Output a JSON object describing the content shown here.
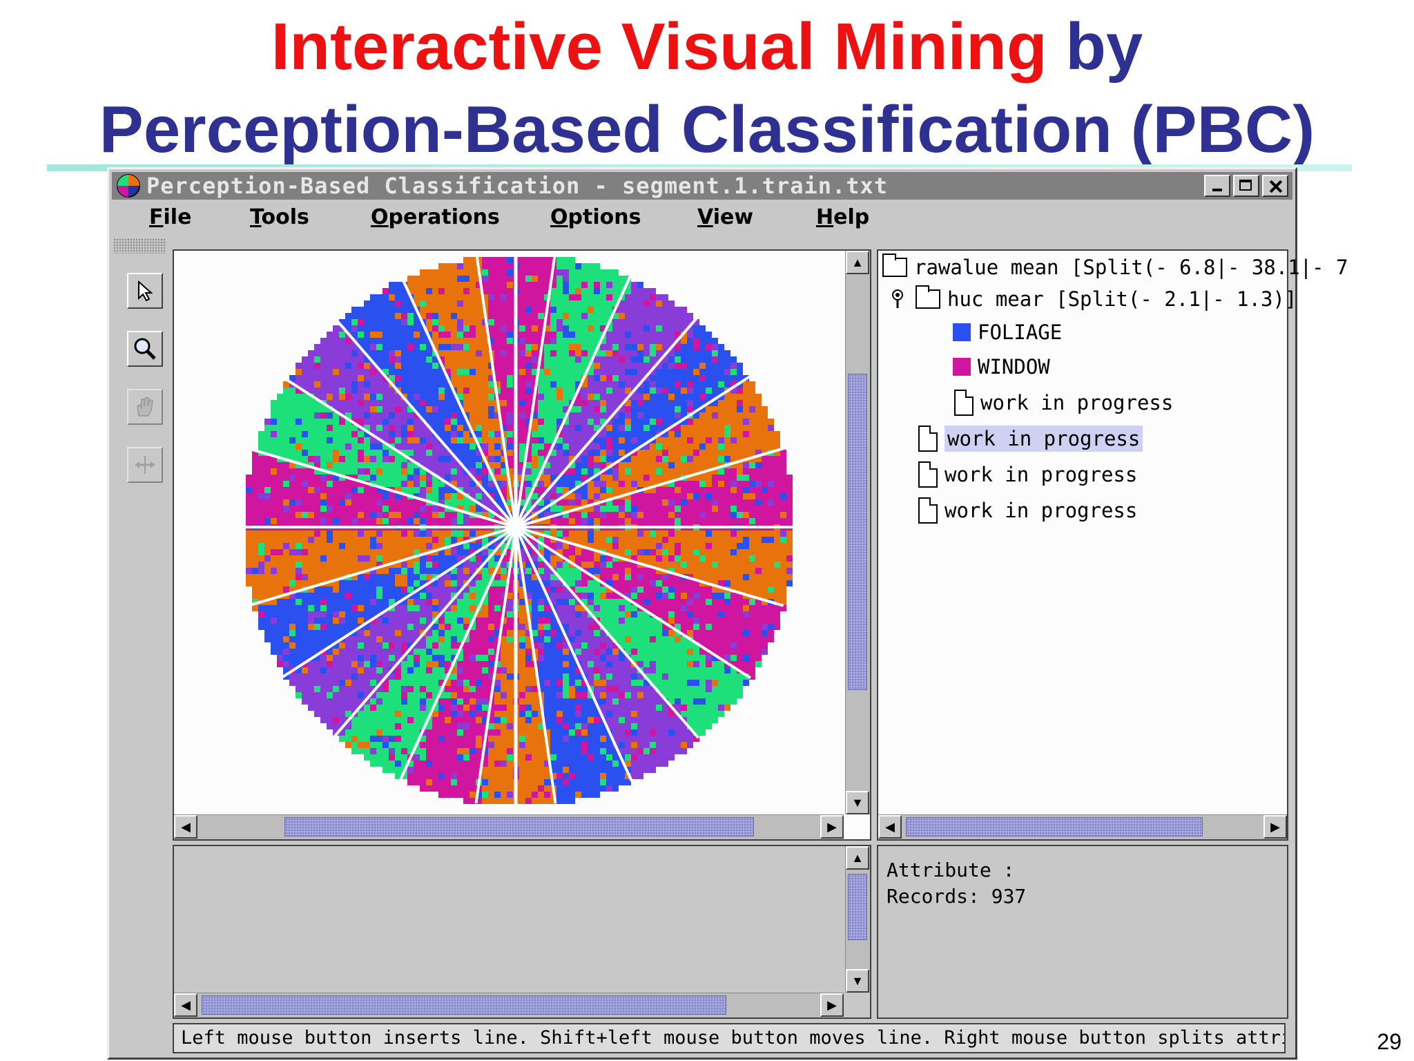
{
  "slide": {
    "title_part1": "Interactive Visual Mining",
    "title_part2": "by",
    "title_line2": "Perception-Based Classification (PBC)",
    "page_number": "29"
  },
  "window": {
    "title": "Perception-Based Classification - segment.1.train.txt",
    "menus": [
      "File",
      "Tools",
      "Operations",
      "Options",
      "View",
      "Help"
    ],
    "tools": [
      "pointer-icon",
      "zoom-icon",
      "hand-icon",
      "resize-icon"
    ]
  },
  "tree": {
    "root": "rawalue mean [Split(- 6.8|- 38.1|- 7",
    "child": "huc mear [Split(- 2.1|- 1.3)]",
    "classes": [
      {
        "label": "FOLIAGE",
        "color": "#2b50f0"
      },
      {
        "label": "WINDOW",
        "color": "#d0159f"
      }
    ],
    "nested_item": "work in progress",
    "items": [
      "work in progress",
      "work in progress",
      "work in progress"
    ]
  },
  "info": {
    "attribute_label": "Attribute :",
    "records_label": "Records:",
    "records_value": "937"
  },
  "status": "Left mouse button inserts line. Shift+left mouse button moves line. Right mouse button splits attribute.",
  "palette": {
    "orange": "#e8720c",
    "green": "#1ee07a",
    "blue": "#2b50f0",
    "magenta": "#d0159f",
    "purple": "#8a3cd8"
  }
}
